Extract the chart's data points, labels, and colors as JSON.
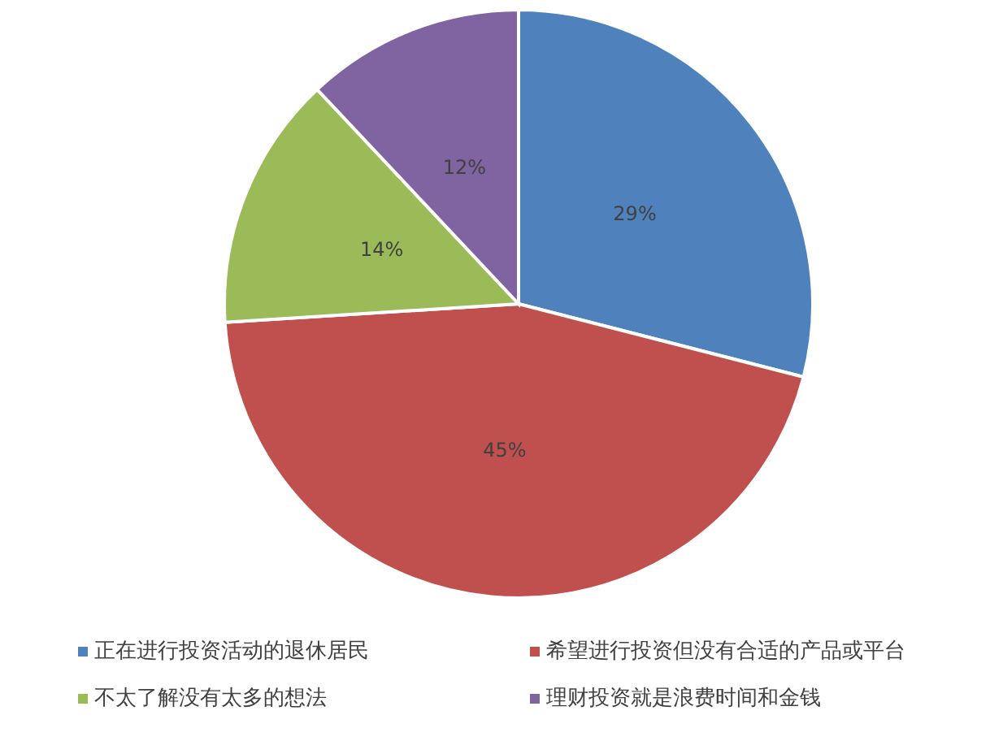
{
  "chart_data": {
    "type": "pie",
    "categories": [
      "正在进行投资活动的退休居民",
      "希望进行投资但没有合适的产品或平台",
      "不太了解没有太多的想法",
      "理财投资就是浪费时间和金钱"
    ],
    "values": [
      29,
      45,
      14,
      12
    ],
    "colors": [
      "#4f81bd",
      "#c0504d",
      "#9bbb59",
      "#8064a2"
    ],
    "value_labels": [
      "29%",
      "45%",
      "14%",
      "12%"
    ],
    "legend": "bottom"
  }
}
